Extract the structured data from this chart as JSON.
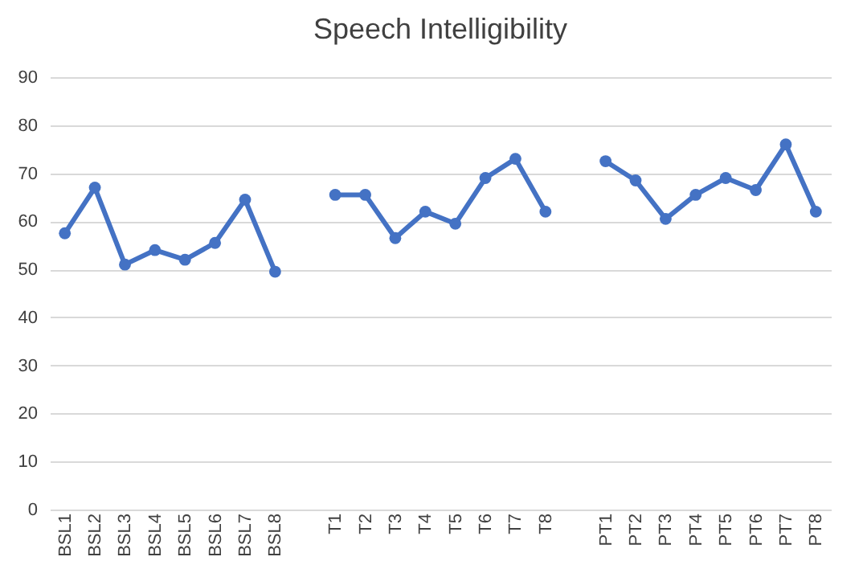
{
  "chart_data": {
    "type": "line",
    "title": "Speech Intelligibility",
    "categories": [
      "BSL1",
      "BSL2",
      "BSL3",
      "BSL4",
      "BSL5",
      "BSL6",
      "BSL7",
      "BSL8",
      null,
      "T1",
      "T2",
      "T3",
      "T4",
      "T5",
      "T6",
      "T7",
      "T8",
      null,
      "PT1",
      "PT2",
      "PT3",
      "PT4",
      "PT5",
      "PT6",
      "PT7",
      "PT8"
    ],
    "series": [
      {
        "color": "#4472c4",
        "values": [
          57.5,
          67,
          51,
          54,
          52,
          55.5,
          64.5,
          49.5,
          null,
          65.5,
          65.5,
          56.5,
          62,
          59.5,
          69,
          73,
          62,
          null,
          72.5,
          68.5,
          60.5,
          65.5,
          69,
          66.5,
          76,
          62
        ]
      }
    ],
    "ylim": [
      0,
      90
    ],
    "yticks": [
      0,
      10,
      20,
      30,
      40,
      50,
      60,
      70,
      80,
      90
    ],
    "grid": "y",
    "marker": "circle",
    "legend": false
  }
}
